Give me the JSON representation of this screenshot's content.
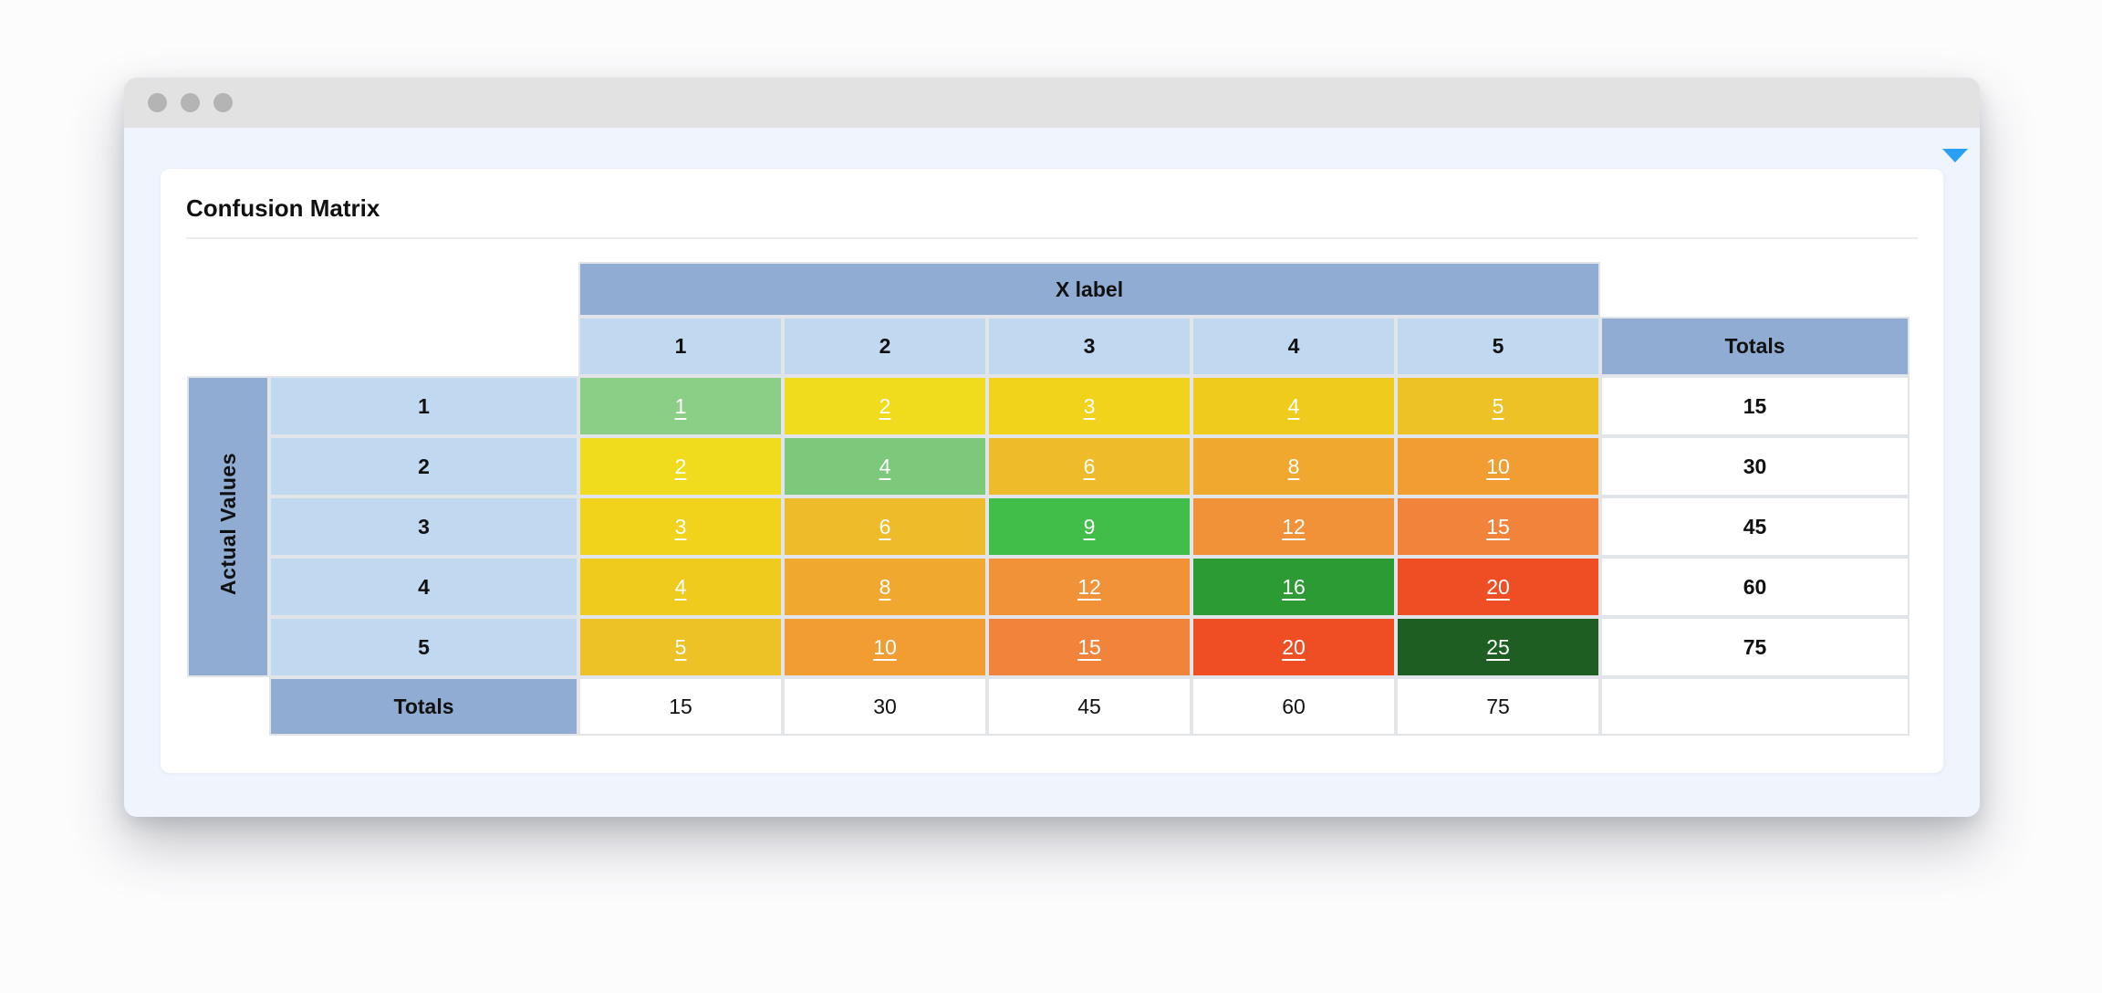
{
  "card": {
    "title": "Confusion Matrix"
  },
  "matrix": {
    "x_axis_label": "X label",
    "y_axis_label": "Actual Values",
    "totals_label": "Totals",
    "col_headers": [
      "1",
      "2",
      "3",
      "4",
      "5"
    ],
    "rows": [
      {
        "label": "1",
        "cells": [
          {
            "v": "1",
            "bg": "#8bce85"
          },
          {
            "v": "2",
            "bg": "#f0dc1d"
          },
          {
            "v": "3",
            "bg": "#f0d31a"
          },
          {
            "v": "4",
            "bg": "#efcb1e"
          },
          {
            "v": "5",
            "bg": "#ecc227"
          }
        ],
        "total": "15"
      },
      {
        "label": "2",
        "cells": [
          {
            "v": "2",
            "bg": "#f0dc1d"
          },
          {
            "v": "4",
            "bg": "#7cc97c"
          },
          {
            "v": "6",
            "bg": "#eebb2a"
          },
          {
            "v": "8",
            "bg": "#f0a92e"
          },
          {
            "v": "10",
            "bg": "#f19d32"
          }
        ],
        "total": "30"
      },
      {
        "label": "3",
        "cells": [
          {
            "v": "3",
            "bg": "#f0d31a"
          },
          {
            "v": "6",
            "bg": "#eebb2a"
          },
          {
            "v": "9",
            "bg": "#41bd49"
          },
          {
            "v": "12",
            "bg": "#f19238"
          },
          {
            "v": "15",
            "bg": "#f2833b"
          }
        ],
        "total": "45"
      },
      {
        "label": "4",
        "cells": [
          {
            "v": "4",
            "bg": "#efcb1e"
          },
          {
            "v": "8",
            "bg": "#f0a92e"
          },
          {
            "v": "12",
            "bg": "#f19238"
          },
          {
            "v": "16",
            "bg": "#2d9b33"
          },
          {
            "v": "20",
            "bg": "#ef4e25"
          }
        ],
        "total": "60"
      },
      {
        "label": "5",
        "cells": [
          {
            "v": "5",
            "bg": "#ecc227"
          },
          {
            "v": "10",
            "bg": "#f19d32"
          },
          {
            "v": "15",
            "bg": "#f2833b"
          },
          {
            "v": "20",
            "bg": "#ef4e25"
          },
          {
            "v": "25",
            "bg": "#1e5e23"
          }
        ],
        "total": "75"
      }
    ],
    "col_totals": [
      "15",
      "30",
      "45",
      "60",
      "75"
    ]
  },
  "chart_data": {
    "type": "heatmap",
    "title": "Confusion Matrix",
    "xlabel": "X label",
    "ylabel": "Actual Values",
    "x": [
      1,
      2,
      3,
      4,
      5
    ],
    "y": [
      1,
      2,
      3,
      4,
      5
    ],
    "values": [
      [
        1,
        2,
        3,
        4,
        5
      ],
      [
        2,
        4,
        6,
        8,
        10
      ],
      [
        3,
        6,
        9,
        12,
        15
      ],
      [
        4,
        8,
        12,
        16,
        20
      ],
      [
        5,
        10,
        15,
        20,
        25
      ]
    ],
    "row_totals": [
      15,
      30,
      45,
      60,
      75
    ],
    "col_totals": [
      15,
      30,
      45,
      60,
      75
    ]
  },
  "colors": {
    "header_dark_blue": "#90acd2",
    "header_light_blue": "#c1d9f0",
    "grid_line": "#e1e4e8",
    "caret_blue": "#2aa0f5",
    "titlebar_gray": "#e2e2e2",
    "dot_gray": "#b4b4b4",
    "panel_blue": "#f0f4fd",
    "cell_text": "#ffffff",
    "text_dark": "#111111"
  }
}
